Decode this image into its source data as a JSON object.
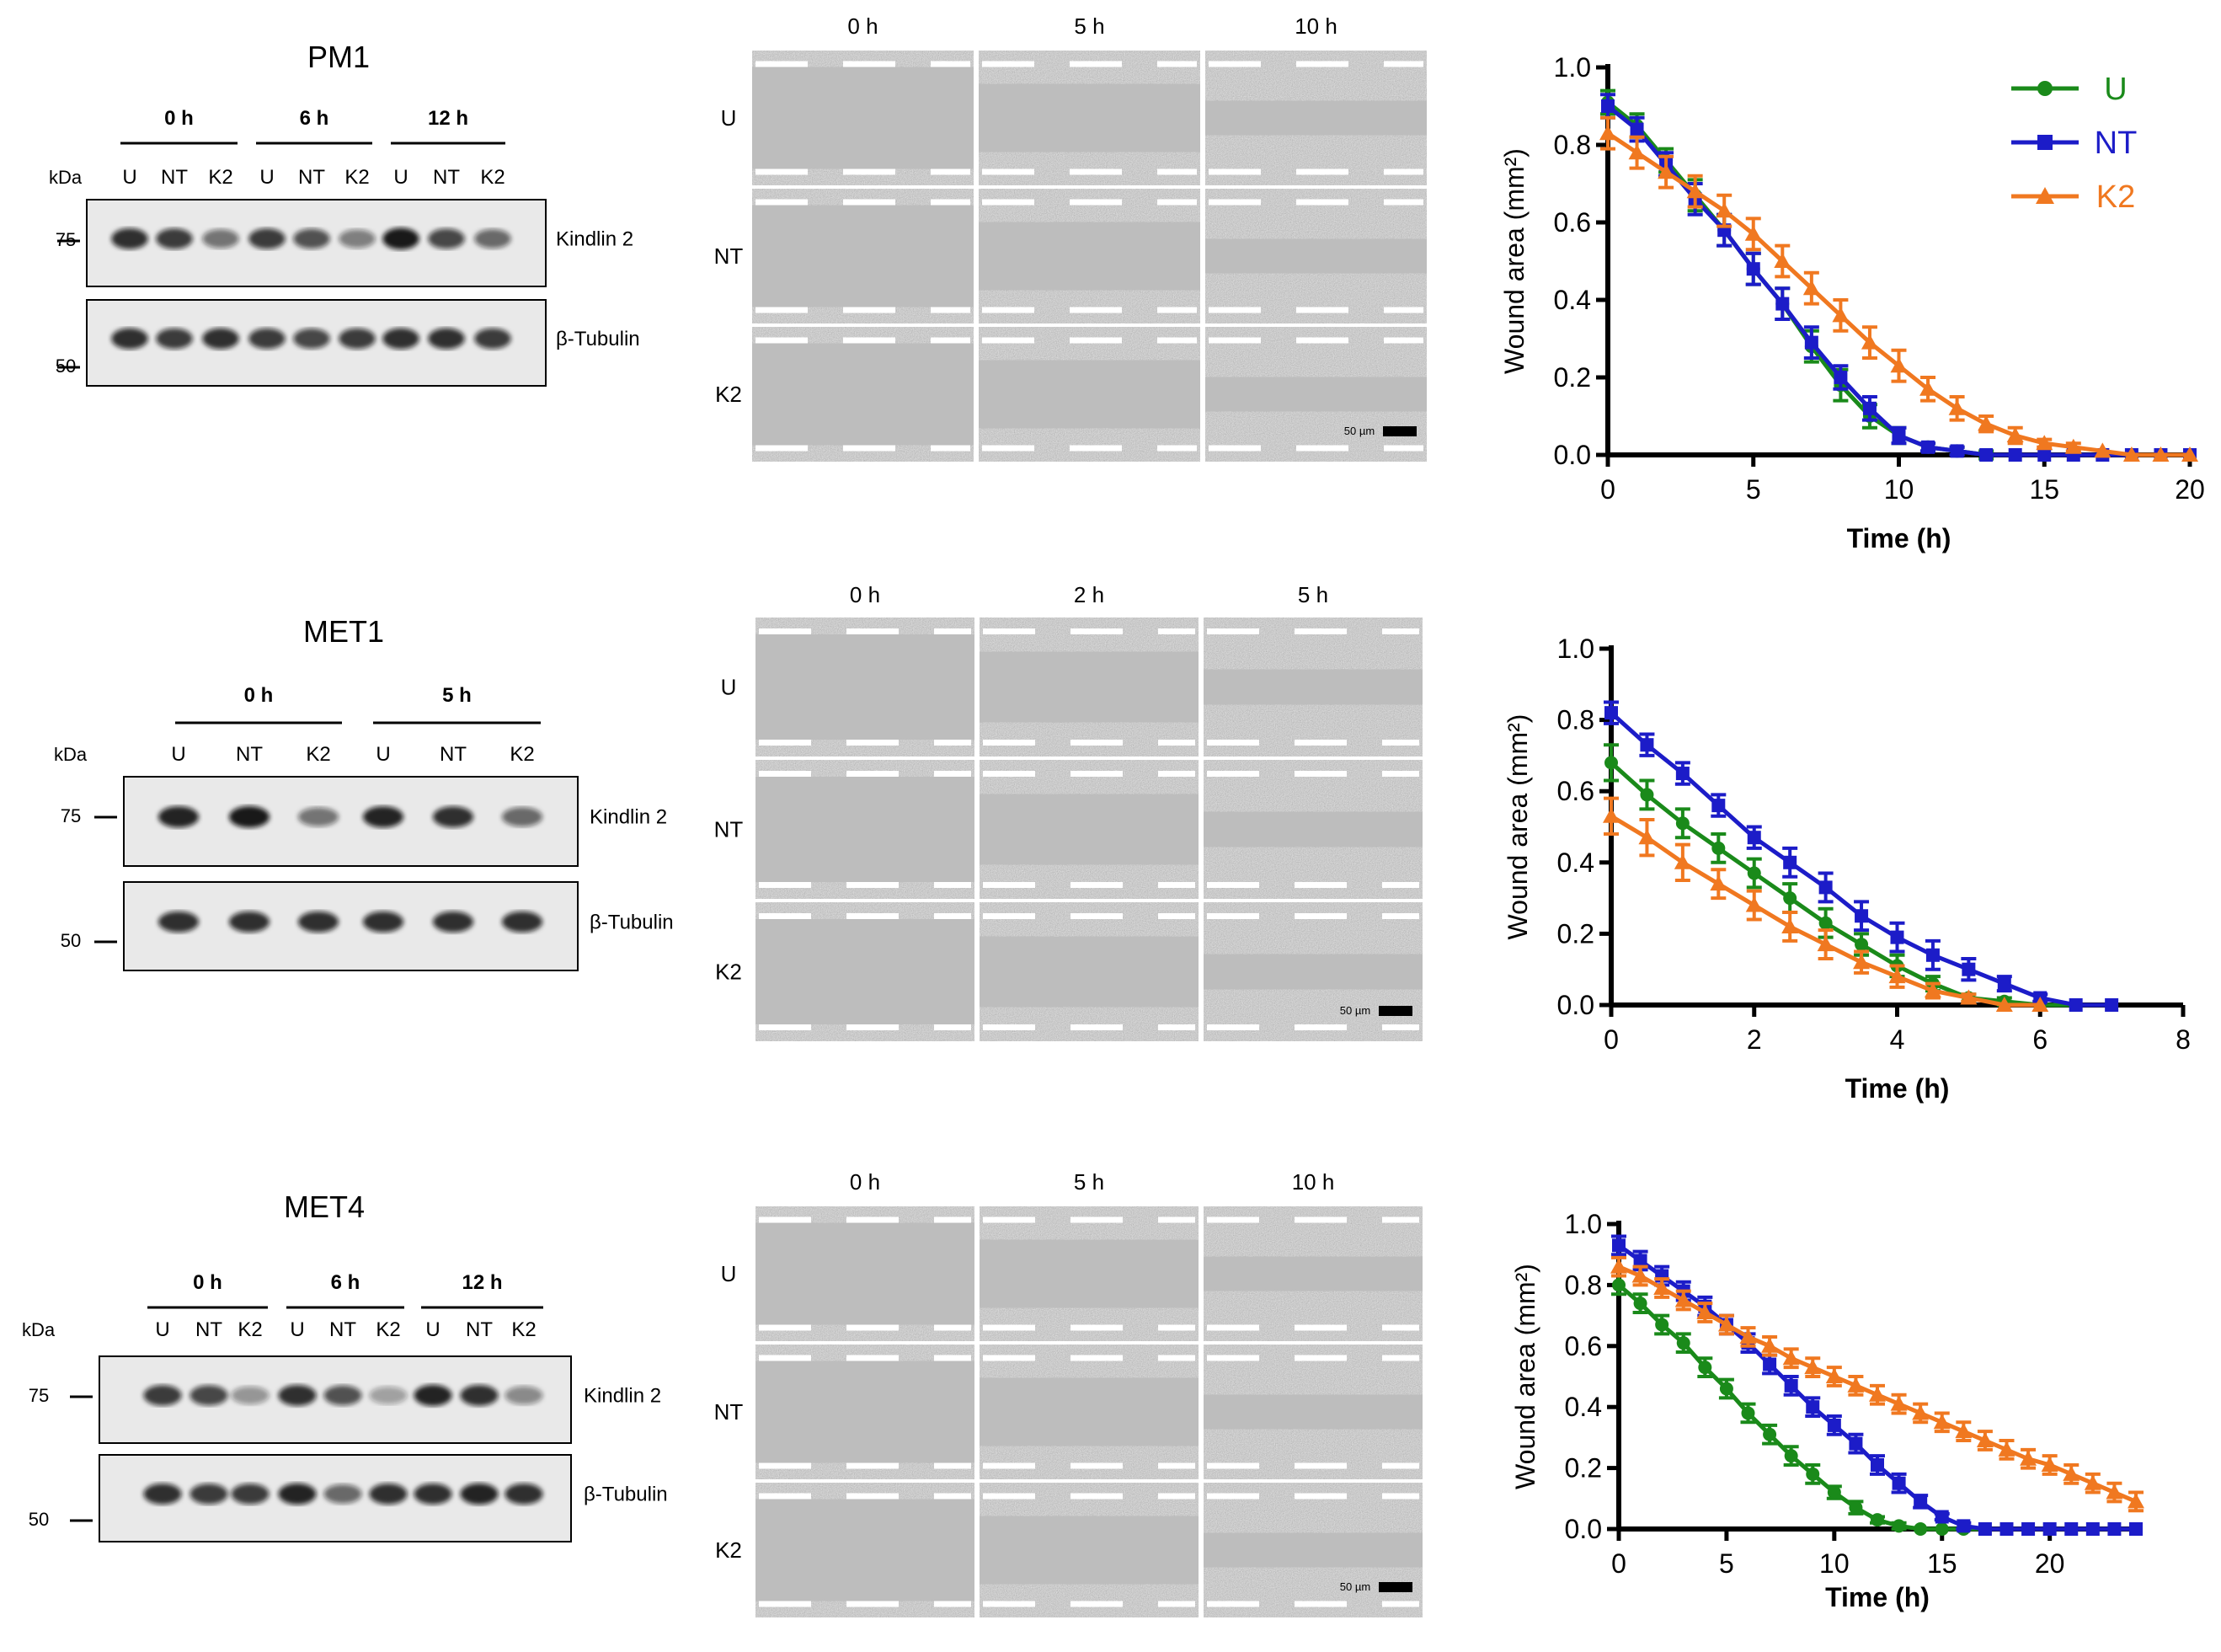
{
  "panels": [
    {
      "id": "pm1",
      "cell_line": "PM1",
      "blot": {
        "kda_label": "kDa",
        "mw_markers": [
          "75",
          "50"
        ],
        "timepoints": [
          "0 h",
          "6 h",
          "12 h"
        ],
        "lanes": [
          "U",
          "NT",
          "K2",
          "U",
          "NT",
          "K2",
          "U",
          "NT",
          "K2"
        ],
        "proteins": [
          "Kindlin 2",
          "β-Tubulin"
        ],
        "kindlin_intensity": [
          0.85,
          0.8,
          0.55,
          0.8,
          0.7,
          0.5,
          0.95,
          0.75,
          0.6
        ],
        "tubulin_intensity": [
          0.85,
          0.8,
          0.85,
          0.8,
          0.75,
          0.8,
          0.85,
          0.85,
          0.8
        ]
      },
      "micrographs": {
        "timepoints": [
          "0 h",
          "5 h",
          "10 h"
        ],
        "rows": [
          "U",
          "NT",
          "K2"
        ],
        "scale_bar": "50 µm"
      },
      "chart_data": {
        "type": "line",
        "xlabel": "Time (h)",
        "ylabel": "Wound area (mm²)",
        "xlim": [
          0,
          20
        ],
        "ylim": [
          0,
          1.0
        ],
        "xticks": [
          0,
          5,
          10,
          15,
          20
        ],
        "yticks": [
          0.0,
          0.2,
          0.4,
          0.6,
          0.8,
          1.0
        ],
        "legend": "top-right",
        "series": [
          {
            "name": "U",
            "color": "#1a8a1a",
            "marker": "circle",
            "x": [
              0,
              1,
              2,
              3,
              4,
              5,
              6,
              7,
              8,
              9,
              10,
              11,
              12,
              13,
              14,
              15,
              16,
              17,
              18,
              19,
              20
            ],
            "y": [
              0.91,
              0.85,
              0.76,
              0.67,
              0.58,
              0.48,
              0.39,
              0.28,
              0.18,
              0.1,
              0.05,
              0.02,
              0.01,
              0.0,
              0.0,
              0.0,
              0.0,
              0.0,
              0.0,
              0.0,
              0.0
            ],
            "err": [
              0.03,
              0.03,
              0.03,
              0.04,
              0.04,
              0.04,
              0.04,
              0.04,
              0.04,
              0.03,
              0.02,
              0.01,
              0.01,
              0.01,
              0.0,
              0.0,
              0.0,
              0.0,
              0.0,
              0.0,
              0.0
            ]
          },
          {
            "name": "NT",
            "color": "#1c1cc8",
            "marker": "square",
            "x": [
              0,
              1,
              2,
              3,
              4,
              5,
              6,
              7,
              8,
              9,
              10,
              11,
              12,
              13,
              14,
              15,
              16,
              17,
              18,
              19,
              20
            ],
            "y": [
              0.9,
              0.84,
              0.75,
              0.66,
              0.58,
              0.48,
              0.39,
              0.29,
              0.2,
              0.12,
              0.05,
              0.02,
              0.01,
              0.0,
              0.0,
              0.0,
              0.0,
              0.0,
              0.0,
              0.0,
              0.0
            ],
            "err": [
              0.03,
              0.03,
              0.03,
              0.04,
              0.04,
              0.04,
              0.04,
              0.04,
              0.03,
              0.03,
              0.02,
              0.01,
              0.01,
              0.0,
              0.0,
              0.0,
              0.0,
              0.0,
              0.0,
              0.0,
              0.0
            ]
          },
          {
            "name": "K2",
            "color": "#f07820",
            "marker": "triangle",
            "x": [
              0,
              1,
              2,
              3,
              4,
              5,
              6,
              7,
              8,
              9,
              10,
              11,
              12,
              13,
              14,
              15,
              16,
              17,
              18,
              19,
              20
            ],
            "y": [
              0.83,
              0.78,
              0.73,
              0.68,
              0.63,
              0.57,
              0.5,
              0.43,
              0.36,
              0.29,
              0.23,
              0.17,
              0.12,
              0.08,
              0.05,
              0.03,
              0.02,
              0.01,
              0.0,
              0.0,
              0.0
            ],
            "err": [
              0.04,
              0.04,
              0.04,
              0.04,
              0.04,
              0.04,
              0.04,
              0.04,
              0.04,
              0.04,
              0.04,
              0.03,
              0.03,
              0.02,
              0.02,
              0.01,
              0.01,
              0.0,
              0.0,
              0.0,
              0.0
            ]
          }
        ]
      }
    },
    {
      "id": "met1",
      "cell_line": "MET1",
      "blot": {
        "kda_label": "kDa",
        "mw_markers": [
          "75",
          "50"
        ],
        "timepoints": [
          "0 h",
          "5 h"
        ],
        "lanes": [
          "U",
          "NT",
          "K2",
          "U",
          "NT",
          "K2"
        ],
        "proteins": [
          "Kindlin 2",
          "β-Tubulin"
        ],
        "kindlin_intensity": [
          0.9,
          0.95,
          0.55,
          0.9,
          0.85,
          0.6
        ],
        "tubulin_intensity": [
          0.85,
          0.85,
          0.85,
          0.85,
          0.85,
          0.85
        ]
      },
      "micrographs": {
        "timepoints": [
          "0 h",
          "2 h",
          "5 h"
        ],
        "rows": [
          "U",
          "NT",
          "K2"
        ],
        "scale_bar": "50 µm"
      },
      "chart_data": {
        "type": "line",
        "xlabel": "Time (h)",
        "ylabel": "Wound area (mm²)",
        "xlim": [
          0,
          8
        ],
        "ylim": [
          0,
          1.0
        ],
        "xticks": [
          0,
          2,
          4,
          6,
          8
        ],
        "yticks": [
          0.0,
          0.2,
          0.4,
          0.6,
          0.8,
          1.0
        ],
        "series": [
          {
            "name": "U",
            "color": "#1a8a1a",
            "marker": "circle",
            "x": [
              0,
              0.5,
              1,
              1.5,
              2,
              2.5,
              3,
              3.5,
              4,
              4.5,
              5,
              5.5,
              6,
              6.5,
              7
            ],
            "y": [
              0.68,
              0.59,
              0.51,
              0.44,
              0.37,
              0.3,
              0.23,
              0.17,
              0.11,
              0.06,
              0.02,
              0.01,
              0.0,
              0.0,
              0.0
            ],
            "err": [
              0.05,
              0.04,
              0.04,
              0.04,
              0.04,
              0.04,
              0.04,
              0.03,
              0.03,
              0.02,
              0.01,
              0.01,
              0.0,
              0.0,
              0.0
            ]
          },
          {
            "name": "NT",
            "color": "#1c1cc8",
            "marker": "square",
            "x": [
              0,
              0.5,
              1,
              1.5,
              2,
              2.5,
              3,
              3.5,
              4,
              4.5,
              5,
              5.5,
              6,
              6.5,
              7
            ],
            "y": [
              0.82,
              0.73,
              0.65,
              0.56,
              0.47,
              0.4,
              0.33,
              0.25,
              0.19,
              0.14,
              0.1,
              0.06,
              0.02,
              0.0,
              0.0
            ],
            "err": [
              0.03,
              0.03,
              0.03,
              0.03,
              0.03,
              0.04,
              0.04,
              0.04,
              0.04,
              0.04,
              0.03,
              0.02,
              0.01,
              0.0,
              0.0
            ]
          },
          {
            "name": "K2",
            "color": "#f07820",
            "marker": "triangle",
            "x": [
              0,
              0.5,
              1,
              1.5,
              2,
              2.5,
              3,
              3.5,
              4,
              4.5,
              5,
              5.5,
              6
            ],
            "y": [
              0.53,
              0.47,
              0.4,
              0.34,
              0.28,
              0.22,
              0.17,
              0.12,
              0.08,
              0.04,
              0.02,
              0.0,
              0.0
            ],
            "err": [
              0.05,
              0.05,
              0.05,
              0.04,
              0.04,
              0.04,
              0.04,
              0.03,
              0.03,
              0.02,
              0.01,
              0.0,
              0.0
            ]
          }
        ]
      }
    },
    {
      "id": "met4",
      "cell_line": "MET4",
      "blot": {
        "kda_label": "kDa",
        "mw_markers": [
          "75",
          "50"
        ],
        "timepoints": [
          "0 h",
          "6 h",
          "12 h"
        ],
        "lanes": [
          "U",
          "NT",
          "K2",
          "U",
          "NT",
          "K2",
          "U",
          "NT",
          "K2"
        ],
        "proteins": [
          "Kindlin 2",
          "β-Tubulin"
        ],
        "kindlin_intensity": [
          0.8,
          0.75,
          0.4,
          0.85,
          0.7,
          0.35,
          0.9,
          0.85,
          0.45
        ],
        "tubulin_intensity": [
          0.85,
          0.8,
          0.8,
          0.9,
          0.6,
          0.85,
          0.85,
          0.9,
          0.85
        ]
      },
      "micrographs": {
        "timepoints": [
          "0 h",
          "5 h",
          "10 h"
        ],
        "rows": [
          "U",
          "NT",
          "K2"
        ],
        "scale_bar": "50 µm"
      },
      "chart_data": {
        "type": "line",
        "xlabel": "Time (h)",
        "ylabel": "Wound area (mm²)",
        "xlim": [
          0,
          24
        ],
        "ylim": [
          0,
          1.0
        ],
        "xticks": [
          0,
          5,
          10,
          15,
          20
        ],
        "yticks": [
          0.0,
          0.2,
          0.4,
          0.6,
          0.8,
          1.0
        ],
        "series": [
          {
            "name": "U",
            "color": "#1a8a1a",
            "marker": "circle",
            "x": [
              0,
              1,
              2,
              3,
              4,
              5,
              6,
              7,
              8,
              9,
              10,
              11,
              12,
              13,
              14,
              15,
              16,
              17,
              18,
              19,
              20,
              21,
              22,
              23,
              24
            ],
            "y": [
              0.8,
              0.74,
              0.67,
              0.61,
              0.53,
              0.46,
              0.38,
              0.31,
              0.24,
              0.18,
              0.12,
              0.07,
              0.03,
              0.01,
              0,
              0,
              0,
              0,
              0,
              0,
              0,
              0,
              0,
              0,
              0
            ],
            "err": [
              0.03,
              0.03,
              0.03,
              0.03,
              0.03,
              0.03,
              0.03,
              0.03,
              0.03,
              0.03,
              0.02,
              0.02,
              0.01,
              0.01,
              0,
              0,
              0,
              0,
              0,
              0,
              0,
              0,
              0,
              0,
              0
            ]
          },
          {
            "name": "NT",
            "color": "#1c1cc8",
            "marker": "square",
            "x": [
              0,
              1,
              2,
              3,
              4,
              5,
              6,
              7,
              8,
              9,
              10,
              11,
              12,
              13,
              14,
              15,
              16,
              17,
              18,
              19,
              20,
              21,
              22,
              23,
              24
            ],
            "y": [
              0.93,
              0.88,
              0.83,
              0.78,
              0.73,
              0.67,
              0.61,
              0.54,
              0.47,
              0.4,
              0.34,
              0.28,
              0.21,
              0.15,
              0.09,
              0.04,
              0.01,
              0,
              0,
              0,
              0,
              0,
              0,
              0,
              0
            ],
            "err": [
              0.03,
              0.03,
              0.03,
              0.03,
              0.03,
              0.03,
              0.03,
              0.03,
              0.03,
              0.03,
              0.03,
              0.03,
              0.03,
              0.03,
              0.02,
              0.01,
              0.01,
              0,
              0,
              0,
              0,
              0,
              0,
              0,
              0
            ],
            "_note": ""
          },
          {
            "name": "K2",
            "color": "#f07820",
            "marker": "triangle",
            "x": [
              0,
              1,
              2,
              3,
              4,
              5,
              6,
              7,
              8,
              9,
              10,
              11,
              12,
              13,
              14,
              15,
              16,
              17,
              18,
              19,
              20,
              21,
              22,
              23,
              24
            ],
            "y": [
              0.86,
              0.83,
              0.79,
              0.75,
              0.71,
              0.67,
              0.63,
              0.6,
              0.56,
              0.53,
              0.5,
              0.47,
              0.44,
              0.41,
              0.38,
              0.35,
              0.32,
              0.29,
              0.26,
              0.23,
              0.21,
              0.18,
              0.15,
              0.12,
              0.09
            ],
            "err": [
              0.03,
              0.03,
              0.03,
              0.03,
              0.03,
              0.03,
              0.03,
              0.03,
              0.03,
              0.03,
              0.03,
              0.03,
              0.03,
              0.03,
              0.03,
              0.03,
              0.03,
              0.03,
              0.03,
              0.03,
              0.03,
              0.03,
              0.03,
              0.03,
              0.03
            ]
          }
        ]
      }
    }
  ]
}
